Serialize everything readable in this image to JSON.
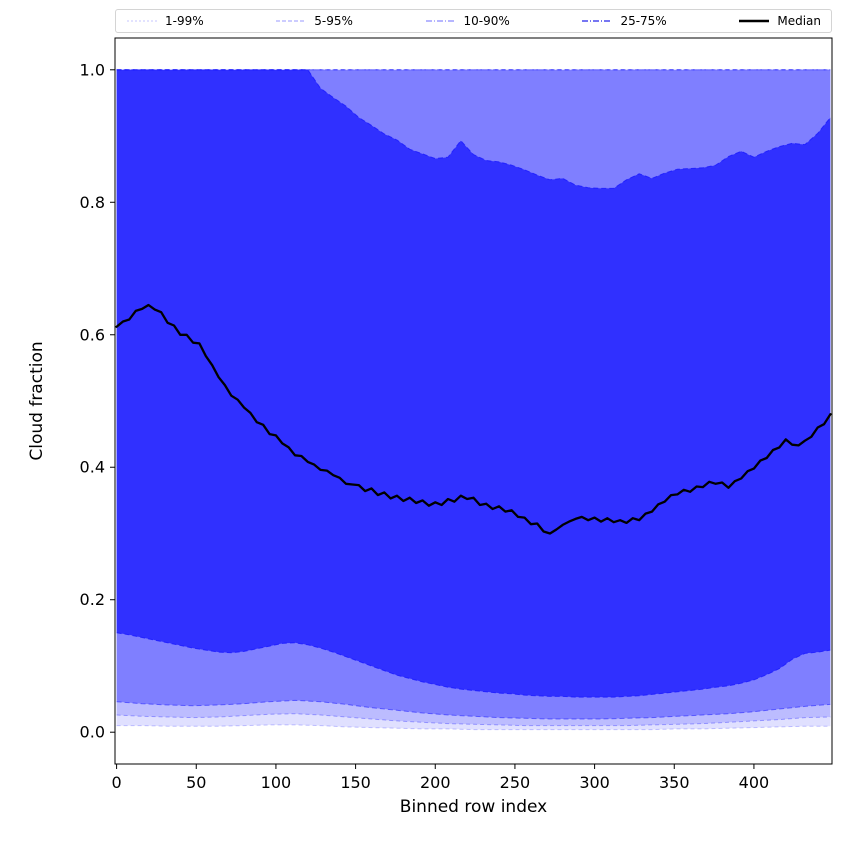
{
  "chart_data": {
    "type": "area",
    "title": "",
    "xlabel": "Binned row index",
    "ylabel": "Cloud fraction",
    "xlim": [
      -1,
      449
    ],
    "ylim": [
      -0.048,
      1.048
    ],
    "grid": false,
    "legend_position": "top-outside-horizontal",
    "xticks": {
      "values": [
        0,
        50,
        100,
        150,
        200,
        250,
        300,
        350,
        400
      ],
      "labels": [
        "0",
        "50",
        "100",
        "150",
        "200",
        "250",
        "300",
        "350",
        "400"
      ]
    },
    "yticks": {
      "values": [
        0.0,
        0.2,
        0.4,
        0.6,
        0.8,
        1.0
      ],
      "labels": [
        "0.0",
        "0.2",
        "0.4",
        "0.6",
        "0.8",
        "1.0"
      ]
    },
    "legend": [
      {
        "label": "1-99%",
        "color": "rgba(0,0,255,0.18)",
        "dash": "2 2",
        "width": 1.2
      },
      {
        "label": "5-95%",
        "color": "rgba(0,0,255,0.32)",
        "dash": "4 2",
        "width": 1.2
      },
      {
        "label": "10-90%",
        "color": "rgba(60,60,255,0.6)",
        "dash": "6 2 1 2",
        "width": 1.3
      },
      {
        "label": "25-75%",
        "color": "rgba(40,40,235,0.85)",
        "dash": "6 2 1 2",
        "width": 1.5
      },
      {
        "label": "Median",
        "color": "#000000",
        "dash": "",
        "width": 2.6
      }
    ],
    "bands": [
      {
        "name": "1-99%",
        "fill": "rgba(0,0,255,0.12)",
        "edge": "rgba(0,0,255,0.22)",
        "edge_dash": "4 3",
        "x_start": 0,
        "x_step": 16,
        "upper": 1.0,
        "lower": [
          0.01,
          0.01,
          0.009,
          0.009,
          0.009,
          0.01,
          0.011,
          0.011,
          0.01,
          0.008,
          0.007,
          0.006,
          0.005,
          0.005,
          0.004,
          0.004,
          0.004,
          0.004,
          0.004,
          0.004,
          0.004,
          0.004,
          0.005,
          0.005,
          0.006,
          0.007,
          0.008,
          0.009,
          0.009
        ]
      },
      {
        "name": "5-95%",
        "fill": "rgba(0,0,255,0.16)",
        "edge": "rgba(0,0,255,0.30)",
        "edge_dash": "4 3",
        "x_start": 0,
        "x_step": 16,
        "upper": 1.0,
        "lower": [
          0.026,
          0.024,
          0.023,
          0.022,
          0.023,
          0.025,
          0.027,
          0.028,
          0.026,
          0.023,
          0.02,
          0.017,
          0.015,
          0.013,
          0.012,
          0.011,
          0.01,
          0.01,
          0.01,
          0.01,
          0.01,
          0.011,
          0.012,
          0.013,
          0.015,
          0.017,
          0.019,
          0.022,
          0.023
        ]
      },
      {
        "name": "10-90%",
        "fill": "rgba(0,0,255,0.32)",
        "edge": "rgba(0,0,255,0.45)",
        "edge_dash": "5 3",
        "x_start": 0,
        "x_step": 16,
        "upper": 1.0,
        "lower": [
          0.046,
          0.043,
          0.041,
          0.04,
          0.041,
          0.043,
          0.046,
          0.048,
          0.046,
          0.042,
          0.037,
          0.033,
          0.029,
          0.026,
          0.024,
          0.022,
          0.021,
          0.02,
          0.02,
          0.02,
          0.021,
          0.022,
          0.024,
          0.026,
          0.028,
          0.031,
          0.035,
          0.039,
          0.042
        ]
      },
      {
        "name": "25-75%",
        "fill": "rgba(0,0,255,0.62)",
        "edge": "rgba(20,20,255,0.75)",
        "edge_dash": "5 3",
        "x_start": 0,
        "x_step": 8,
        "upper": [
          1.0,
          1.0,
          1.0,
          1.0,
          1.0,
          1.0,
          1.0,
          1.0,
          1.0,
          1.0,
          1.0,
          1.0,
          1.0,
          1.0,
          1.0,
          1.0,
          0.972,
          0.958,
          0.945,
          0.928,
          0.916,
          0.903,
          0.894,
          0.88,
          0.873,
          0.866,
          0.868,
          0.893,
          0.872,
          0.863,
          0.861,
          0.856,
          0.849,
          0.841,
          0.834,
          0.836,
          0.826,
          0.822,
          0.821,
          0.821,
          0.834,
          0.843,
          0.836,
          0.844,
          0.85,
          0.851,
          0.852,
          0.856,
          0.869,
          0.877,
          0.868,
          0.877,
          0.884,
          0.889,
          0.887,
          0.904,
          0.928
        ],
        "lower": [
          0.15,
          0.147,
          0.143,
          0.139,
          0.135,
          0.131,
          0.127,
          0.124,
          0.121,
          0.12,
          0.122,
          0.126,
          0.13,
          0.134,
          0.135,
          0.132,
          0.127,
          0.121,
          0.114,
          0.107,
          0.1,
          0.093,
          0.086,
          0.081,
          0.076,
          0.072,
          0.068,
          0.065,
          0.063,
          0.061,
          0.059,
          0.058,
          0.056,
          0.055,
          0.054,
          0.054,
          0.053,
          0.053,
          0.053,
          0.053,
          0.054,
          0.055,
          0.057,
          0.059,
          0.061,
          0.063,
          0.065,
          0.068,
          0.07,
          0.074,
          0.079,
          0.087,
          0.096,
          0.11,
          0.119,
          0.121,
          0.124
        ]
      }
    ],
    "median": {
      "name": "Median",
      "color": "#000000",
      "width": 2.3,
      "x_start": 0,
      "x_step": 4,
      "y": [
        0.612,
        0.62,
        0.623,
        0.636,
        0.639,
        0.645,
        0.638,
        0.634,
        0.618,
        0.614,
        0.6,
        0.6,
        0.588,
        0.587,
        0.568,
        0.554,
        0.536,
        0.524,
        0.508,
        0.502,
        0.49,
        0.482,
        0.468,
        0.464,
        0.45,
        0.448,
        0.436,
        0.43,
        0.418,
        0.417,
        0.408,
        0.404,
        0.396,
        0.395,
        0.388,
        0.384,
        0.375,
        0.374,
        0.373,
        0.364,
        0.368,
        0.358,
        0.362,
        0.353,
        0.357,
        0.349,
        0.354,
        0.346,
        0.35,
        0.342,
        0.347,
        0.343,
        0.352,
        0.348,
        0.357,
        0.352,
        0.354,
        0.343,
        0.345,
        0.337,
        0.341,
        0.333,
        0.335,
        0.325,
        0.324,
        0.314,
        0.315,
        0.303,
        0.3,
        0.306,
        0.313,
        0.318,
        0.322,
        0.325,
        0.32,
        0.324,
        0.318,
        0.323,
        0.317,
        0.32,
        0.316,
        0.323,
        0.32,
        0.33,
        0.333,
        0.344,
        0.348,
        0.358,
        0.359,
        0.366,
        0.363,
        0.371,
        0.37,
        0.378,
        0.375,
        0.377,
        0.369,
        0.379,
        0.383,
        0.394,
        0.398,
        0.41,
        0.414,
        0.426,
        0.43,
        0.442,
        0.434,
        0.433,
        0.44,
        0.446,
        0.46,
        0.465,
        0.48
      ]
    }
  }
}
